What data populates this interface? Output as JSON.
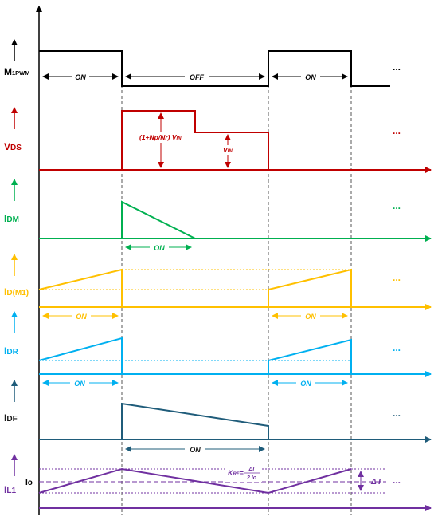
{
  "signals": {
    "pwm": {
      "label": "M",
      "sub": "1PWM",
      "color": "#000000"
    },
    "vds": {
      "label": "V",
      "sub": "DS",
      "color": "#c00000"
    },
    "idm": {
      "label": "I",
      "sub": "DM",
      "color": "#00b050"
    },
    "idm1": {
      "label": "I",
      "sub": "D(M1)",
      "color": "#ffc000"
    },
    "idr": {
      "label": "I",
      "sub": "DR",
      "color": "#00b0f0"
    },
    "idf": {
      "label": "I",
      "sub": "DF",
      "color": "#1f5c7a"
    },
    "il1": {
      "label": "I",
      "sub": "L1",
      "color": "#7030a0"
    }
  },
  "annotations": {
    "on": "ON",
    "off": "OFF",
    "ellipsis": "...",
    "vds_high_pre": "(1+Np/Nr) V",
    "vds_high_sub": "IN",
    "vds_low": "V",
    "vds_low_sub": "IN",
    "io": "Io",
    "delta_i": "Δ I",
    "krf_k": "K",
    "krf_sub": "RF",
    "krf_eq": "=",
    "krf_num": "ΔI",
    "krf_den": "2 Io"
  }
}
